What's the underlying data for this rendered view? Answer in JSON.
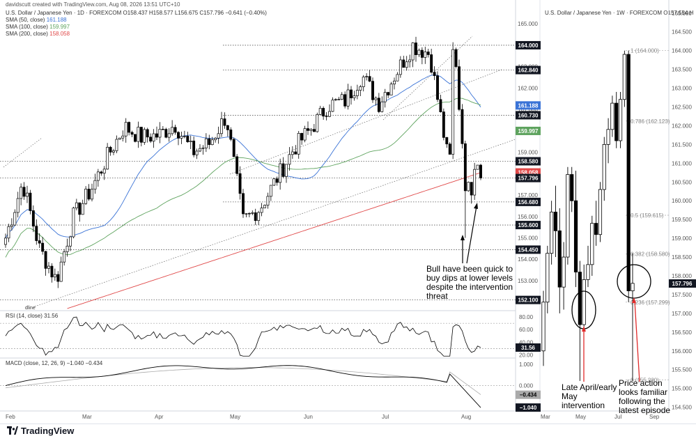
{
  "header": {
    "credit": "davidscutt created with TradingView.com, Aug 08, 2026 13:51 UTC+10"
  },
  "left_chart": {
    "title": "U.S. Dollar / Japanese Yen · 1D · FOREXCOM",
    "ohlc": "O158.437 H158.577 L156.675 C157.796 −0.641 (−0.40%)",
    "sma": [
      {
        "label": "SMA (50, close)",
        "value": "161.188",
        "color": "#3a73d6"
      },
      {
        "label": "SMA (100, close)",
        "value": "159.997",
        "color": "#5ea35e"
      },
      {
        "label": "SMA (200, close)",
        "value": "158.058",
        "color": "#e04848"
      }
    ],
    "axis_labels": [
      "165.000",
      "163.000",
      "162.000",
      "161.000",
      "159.000",
      "157.000",
      "156.000",
      "155.000",
      "154.000",
      "153.000"
    ],
    "price_tags": [
      {
        "text": "164.000",
        "value": 164.0,
        "style": "dark"
      },
      {
        "text": "162.840",
        "value": 162.84,
        "style": "dark"
      },
      {
        "text": "161.188",
        "value": 161.188,
        "style": "blue"
      },
      {
        "text": "160.730",
        "value": 160.73,
        "style": "dark"
      },
      {
        "text": "159.997",
        "value": 159.997,
        "style": "green"
      },
      {
        "text": "158.580",
        "value": 158.58,
        "style": "dark"
      },
      {
        "text": "158.058",
        "value": 158.058,
        "style": "red"
      },
      {
        "text": "157.796",
        "value": 157.796,
        "style": "dark"
      },
      {
        "text": "156.680",
        "value": 156.68,
        "style": "dark"
      },
      {
        "text": "155.600",
        "value": 155.6,
        "style": "dark"
      },
      {
        "text": "154.450",
        "value": 154.45,
        "style": "dark"
      },
      {
        "text": "152.100",
        "value": 152.1,
        "style": "dark"
      }
    ],
    "trendline_label": "dline",
    "annotation": "Bull have been quick to buy dips at lower levels despite the intervention threat",
    "x_labels": [
      "Feb",
      "Mar",
      "Apr",
      "May",
      "Jun",
      "Jul",
      "Aug"
    ]
  },
  "rsi": {
    "title": "RSI (14, close)",
    "value": "31.56",
    "axis_labels": [
      "80.00",
      "60.00",
      "40.00",
      "20.00"
    ],
    "tag": "31.56"
  },
  "macd": {
    "title": "MACD (close, 12, 26, 9)",
    "values": "−1.040  −0.434",
    "axis_labels": [
      "1.000",
      "0.000"
    ],
    "tags": [
      "−0.434",
      "−1.040"
    ]
  },
  "right_chart": {
    "title": "U.S. Dollar / Japanese Yen · 1W · FOREXCOM",
    "ohlc": "O157.554 H",
    "axis_labels": [
      "165.000",
      "164.500",
      "164.000",
      "163.500",
      "163.000",
      "162.500",
      "162.000",
      "161.500",
      "161.000",
      "160.500",
      "160.000",
      "159.500",
      "159.000",
      "158.500",
      "158.000",
      "157.796",
      "157.500",
      "157.000",
      "156.500",
      "156.000",
      "155.500",
      "155.000",
      "154.500"
    ],
    "fib_levels": [
      {
        "text": "1 (164.000)",
        "value": 164.0
      },
      {
        "text": "0.786 (162.123)",
        "value": 162.123
      },
      {
        "text": "0.5 (159.615)",
        "value": 159.615
      },
      {
        "text": "0.382 (158.580)",
        "value": 158.58
      },
      {
        "text": "0.236 (157.299)",
        "value": 157.299
      },
      {
        "text": "0 (155.230)",
        "value": 155.23
      }
    ],
    "annotation_left": "Late April/early May intervention",
    "annotation_right": "Price action looks familiar following the latest episode",
    "x_labels": [
      "Mar",
      "May",
      "Jul",
      "Sep"
    ]
  },
  "chart_data": [
    {
      "type": "candlestick",
      "title": "U.S. Dollar / Japanese Yen · 1D · FOREXCOM",
      "ylim": [
        151.6,
        165.3
      ],
      "series": [
        {
          "name": "SMA (50, close)",
          "color": "#3a73d6"
        },
        {
          "name": "SMA (100, close)",
          "color": "#5ea35e"
        },
        {
          "name": "SMA (200, close)",
          "color": "#e04848"
        }
      ],
      "close_path": [
        [
          "Feb",
          155.0
        ],
        [
          "Feb",
          157.6
        ],
        [
          "Feb",
          154.5
        ],
        [
          "Feb",
          153.0
        ],
        [
          "Feb",
          156.0
        ],
        [
          "Mar",
          157.2
        ],
        [
          "Mar",
          158.8
        ],
        [
          "Mar",
          160.2
        ],
        [
          "Mar",
          159.7
        ],
        [
          "Apr",
          159.8
        ],
        [
          "Apr",
          160.3
        ],
        [
          "Apr",
          159.0
        ],
        [
          "Apr",
          159.4
        ],
        [
          "May",
          160.7
        ],
        [
          "May",
          155.8
        ],
        [
          "May",
          156.4
        ],
        [
          "May",
          157.8
        ],
        [
          "Jun",
          159.2
        ],
        [
          "Jun",
          160.1
        ],
        [
          "Jun",
          161.2
        ],
        [
          "Jun",
          161.4
        ],
        [
          "Jul",
          162.6
        ],
        [
          "Jul",
          161.3
        ],
        [
          "Jul",
          162.7
        ],
        [
          "Jul",
          164.0
        ],
        [
          "Aug",
          163.6
        ],
        [
          "Aug",
          159.0
        ],
        [
          "Aug",
          157.4
        ],
        [
          "Aug",
          157.8
        ]
      ]
    },
    {
      "type": "line",
      "title": "RSI (14, close)",
      "ylim": [
        15,
        90
      ],
      "last": 31.56
    },
    {
      "type": "line",
      "title": "MACD (close, 12, 26, 9)",
      "ylim": [
        -1.2,
        1.3
      ],
      "series": [
        {
          "name": "MACD",
          "last": -1.04
        },
        {
          "name": "Signal",
          "last": -0.434
        }
      ]
    },
    {
      "type": "candlestick",
      "title": "U.S. Dollar / Japanese Yen · 1W · FOREXCOM",
      "ylim": [
        154.4,
        165.2
      ],
      "candles": [
        {
          "o": 156.0,
          "h": 157.6,
          "l": 155.6,
          "c": 157.3
        },
        {
          "o": 157.3,
          "h": 158.8,
          "l": 157.0,
          "c": 158.6
        },
        {
          "o": 158.6,
          "h": 160.0,
          "l": 158.3,
          "c": 159.7
        },
        {
          "o": 159.7,
          "h": 160.4,
          "l": 158.5,
          "c": 159.2
        },
        {
          "o": 159.2,
          "h": 159.8,
          "l": 157.0,
          "c": 157.7
        },
        {
          "o": 157.7,
          "h": 158.9,
          "l": 157.1,
          "c": 158.5
        },
        {
          "o": 158.5,
          "h": 160.9,
          "l": 158.3,
          "c": 160.7
        },
        {
          "o": 160.7,
          "h": 160.9,
          "l": 159.7,
          "c": 160.0
        },
        {
          "o": 160.0,
          "h": 160.8,
          "l": 157.7,
          "c": 158.1
        },
        {
          "o": 158.1,
          "h": 158.4,
          "l": 155.2,
          "c": 156.7
        },
        {
          "o": 156.7,
          "h": 158.3,
          "l": 156.5,
          "c": 157.9
        },
        {
          "o": 157.9,
          "h": 158.8,
          "l": 157.7,
          "c": 158.3
        },
        {
          "o": 158.3,
          "h": 159.6,
          "l": 158.0,
          "c": 159.4
        },
        {
          "o": 159.4,
          "h": 160.0,
          "l": 158.8,
          "c": 159.1
        },
        {
          "o": 159.1,
          "h": 160.5,
          "l": 158.9,
          "c": 160.3
        },
        {
          "o": 160.3,
          "h": 161.7,
          "l": 160.0,
          "c": 161.5
        },
        {
          "o": 161.5,
          "h": 162.2,
          "l": 161.0,
          "c": 161.9
        },
        {
          "o": 161.9,
          "h": 162.8,
          "l": 161.7,
          "c": 162.6
        },
        {
          "o": 162.6,
          "h": 162.9,
          "l": 161.4,
          "c": 161.6
        },
        {
          "o": 161.6,
          "h": 162.9,
          "l": 161.4,
          "c": 162.7
        },
        {
          "o": 162.7,
          "h": 164.0,
          "l": 162.5,
          "c": 163.9
        },
        {
          "o": 163.9,
          "h": 164.0,
          "l": 157.3,
          "c": 157.6
        },
        {
          "o": 157.6,
          "h": 158.6,
          "l": 155.2,
          "c": 157.8
        }
      ]
    }
  ]
}
